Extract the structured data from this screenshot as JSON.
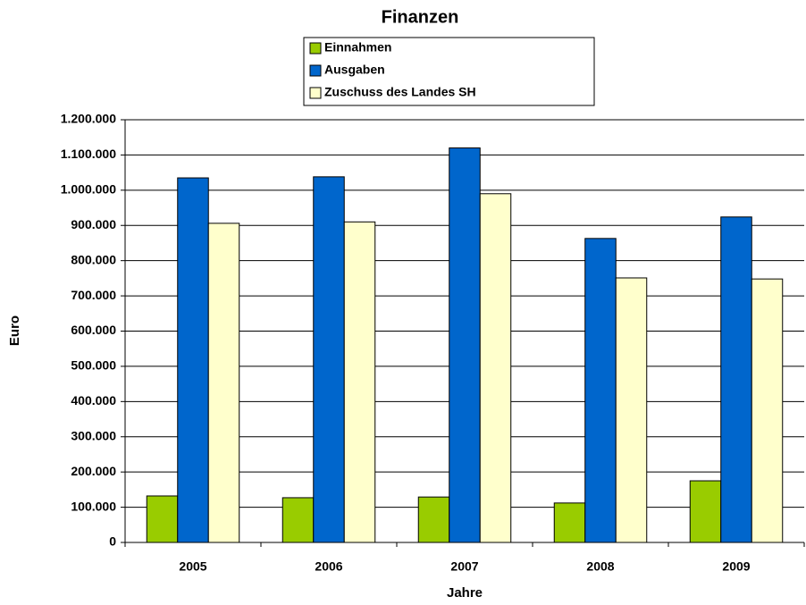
{
  "chart_data": {
    "type": "bar",
    "title": "Finanzen",
    "x_label": "Jahre",
    "y_label": "Euro",
    "categories": [
      "2005",
      "2006",
      "2007",
      "2008",
      "2009"
    ],
    "series": [
      {
        "name": "Einnahmen",
        "color": "#99cc00",
        "values": [
          132000,
          127000,
          129000,
          112000,
          175000
        ]
      },
      {
        "name": "Ausgaben",
        "color": "#0066cc",
        "values": [
          1035000,
          1038000,
          1120000,
          863000,
          924000
        ]
      },
      {
        "name": "Zuschuss des Landes SH",
        "color": "#ffffcc",
        "values": [
          906000,
          910000,
          990000,
          751000,
          748000
        ]
      }
    ],
    "ylim": [
      0,
      1200000
    ],
    "yticks": [
      0,
      {
        "value": 100000,
        "label": "100.000"
      },
      {
        "value": 200000,
        "label": "200.000"
      },
      {
        "value": 300000,
        "label": "300.000"
      },
      {
        "value": 400000,
        "label": "400.000"
      },
      {
        "value": 500000,
        "label": "500.000"
      },
      {
        "value": 600000,
        "label": "600.000"
      },
      {
        "value": 700000,
        "label": "700.000"
      },
      {
        "value": 800000,
        "label": "800.000"
      },
      {
        "value": 900000,
        "label": "900.000"
      },
      {
        "value": 1000000,
        "label": "1.000.000"
      },
      {
        "value": 1100000,
        "label": "1.100.000"
      },
      {
        "value": 1200000,
        "label": "1.200.000"
      }
    ],
    "grid": true
  }
}
